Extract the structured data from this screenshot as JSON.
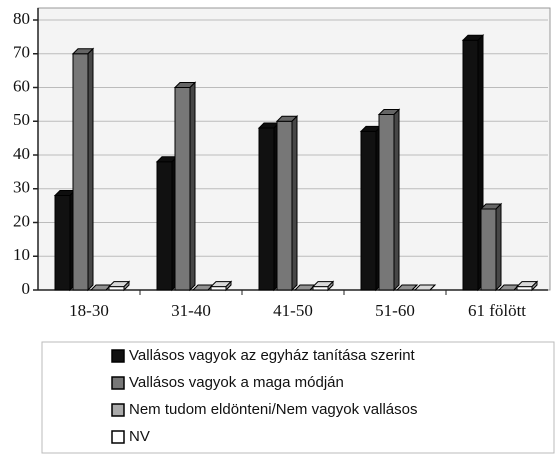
{
  "chart_data": {
    "type": "bar3d",
    "categories": [
      "18-30",
      "31-40",
      "41-50",
      "51-60",
      "61 fölött"
    ],
    "series": [
      {
        "name": "Vallásos vagyok az egyház tanítása szerint",
        "color": "#111111",
        "values": [
          28,
          38,
          48,
          47,
          74
        ]
      },
      {
        "name": "Vallásos vagyok a maga módján",
        "color": "#777777",
        "values": [
          70,
          60,
          50,
          52,
          24
        ]
      },
      {
        "name": "Nem tudom eldönteni/Nem vagyok vallásos",
        "color": "#aaaaaa",
        "values": [
          0,
          0,
          0,
          0,
          0
        ]
      },
      {
        "name": "NV",
        "color": "#ffffff",
        "values": [
          1,
          1,
          1,
          0,
          1
        ]
      }
    ],
    "ylim": [
      0,
      80
    ],
    "yticks": [
      0,
      10,
      20,
      30,
      40,
      50,
      60,
      70,
      80
    ],
    "grid": true
  }
}
